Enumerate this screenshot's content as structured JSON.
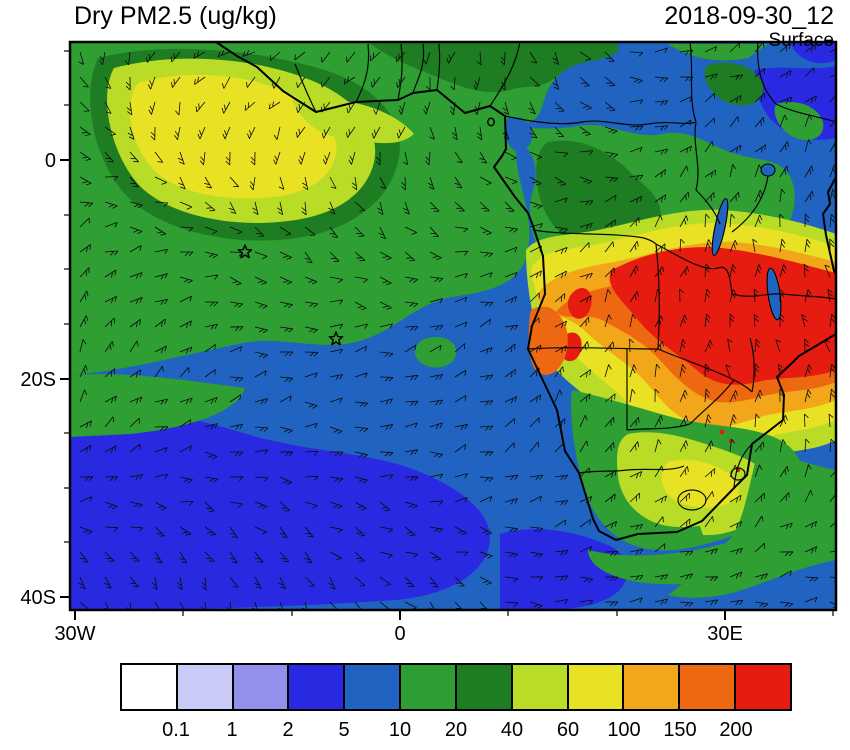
{
  "header": {
    "title": "Dry PM2.5 (ug/kg)",
    "datetime": "2018-09-30_12",
    "level": "Surface"
  },
  "chart_data": {
    "type": "heatmap",
    "title": "Dry PM2.5 (ug/kg)",
    "valid_time": "2018-09-30_12",
    "level": "Surface",
    "units": "ug/kg",
    "projection": "lat-lon map, Africa and South Atlantic",
    "lon_range": [
      -30,
      40.5
    ],
    "lat_range": [
      -41.2,
      10.8
    ],
    "x_ticks": [
      {
        "label": "30W",
        "lon": -30
      },
      {
        "label": "0",
        "lon": 0
      },
      {
        "label": "30E",
        "lon": 30
      }
    ],
    "y_ticks": [
      {
        "label": "0",
        "lat": 0
      },
      {
        "label": "20S",
        "lat": -20
      },
      {
        "label": "40S",
        "lat": -40
      }
    ],
    "scale_breaks": [
      0.1,
      1,
      2,
      5,
      10,
      20,
      40,
      60,
      100,
      150,
      200
    ],
    "scale_colors": [
      "#ffffff",
      "#cacaf8",
      "#9191ec",
      "#2929e2",
      "#2063c1",
      "#2f9e33",
      "#1e7d22",
      "#b9dc26",
      "#e8e124",
      "#f2a619",
      "#ee6812",
      "#e51c0f"
    ],
    "overlays": [
      "wind-barbs",
      "coastlines",
      "country-borders",
      "frame",
      "star-markers"
    ],
    "markers": [
      {
        "symbol": "star",
        "lon": -14.3,
        "lat": -8.4
      },
      {
        "symbol": "star",
        "lon": -5.9,
        "lat": -16.4
      }
    ],
    "regions": [
      {
        "area": "SE Angola / Zambia / southern DR Congo biomass-burning core",
        "value_ug_kg": "> 200"
      },
      {
        "area": "surrounding ring Angola to Mozambique / Tanzania coast",
        "value_ug_kg": "60 - 200"
      },
      {
        "area": "eastern South Africa secondary maximum with isolated > 200 spots",
        "value_ug_kg": "40 - 100"
      },
      {
        "area": "smoke plume off NW African coast (north of equator, west of 0E)",
        "value_ug_kg": "40 - 100"
      },
      {
        "area": "tropical and central South Atlantic",
        "value_ug_kg": "5 - 20"
      },
      {
        "area": "southern South Atlantic south of about 25S",
        "value_ug_kg": "2 - 5"
      },
      {
        "area": "Sahel strip and NE corner (Horn of Africa edge)",
        "value_ug_kg": "5 - 10"
      }
    ]
  }
}
